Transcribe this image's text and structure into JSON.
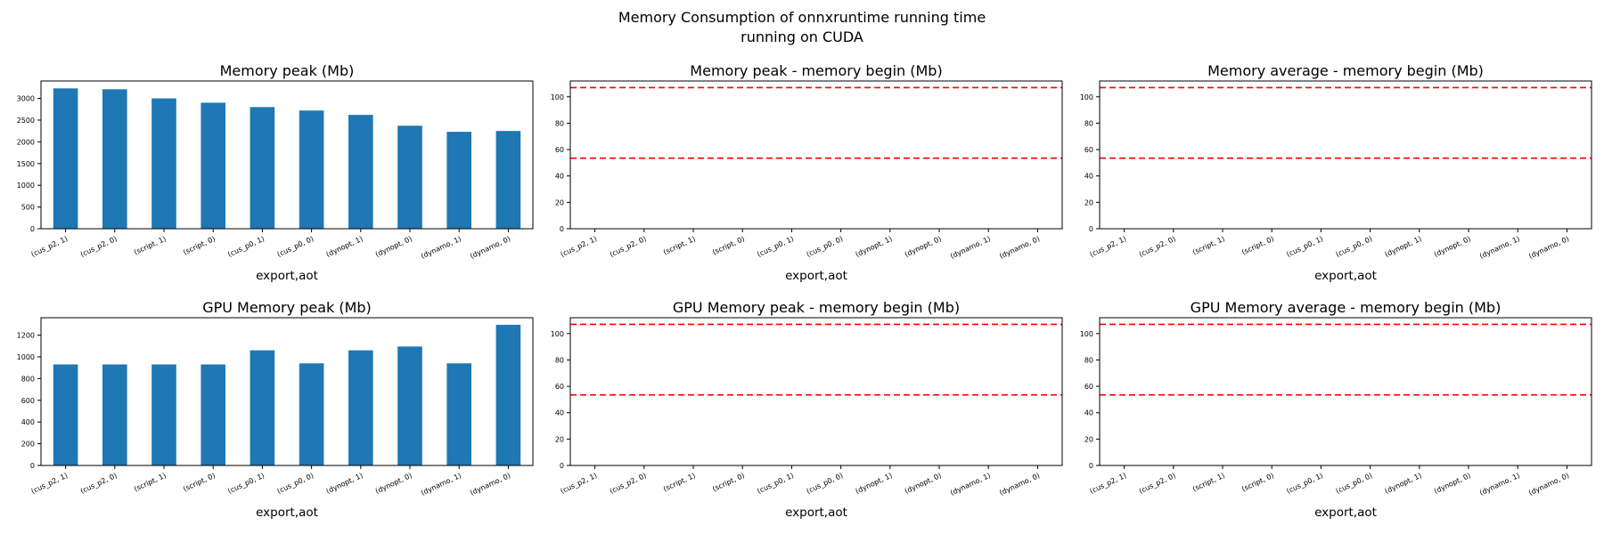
{
  "figure": {
    "title_line1": "Memory Consumption of onnxruntime running time",
    "title_line2": "running on CUDA"
  },
  "chart_data": [
    {
      "type": "bar",
      "title": "Memory peak (Mb)",
      "xlabel": "export,aot",
      "ylabel": "",
      "categories": [
        "(cus_p2, 1)",
        "(cus_p2, 0)",
        "(script, 1)",
        "(script, 0)",
        "(cus_p0, 1)",
        "(cus_p0, 0)",
        "(dynopt, 1)",
        "(dynopt, 0)",
        "(dynamo, 1)",
        "(dynamo, 0)"
      ],
      "values": [
        3230,
        3210,
        3000,
        2900,
        2800,
        2720,
        2620,
        2370,
        2230,
        2250
      ],
      "ylim": [
        0,
        3400
      ],
      "yticks": [
        0,
        500,
        1000,
        1500,
        2000,
        2500,
        3000
      ],
      "hlines": [],
      "legend": "none",
      "grid": false
    },
    {
      "type": "bar",
      "title": "Memory peak - memory begin (Mb)",
      "xlabel": "export,aot",
      "ylabel": "",
      "categories": [
        "(cus_p2, 1)",
        "(cus_p2, 0)",
        "(script, 1)",
        "(script, 0)",
        "(cus_p0, 1)",
        "(cus_p0, 0)",
        "(dynopt, 1)",
        "(dynopt, 0)",
        "(dynamo, 1)",
        "(dynamo, 0)"
      ],
      "values": [
        0,
        0,
        0,
        0,
        0,
        0,
        0,
        0,
        0,
        0
      ],
      "ylim": [
        0,
        112
      ],
      "yticks": [
        0,
        20,
        40,
        60,
        80,
        100
      ],
      "hlines": [
        53.5,
        107
      ],
      "legend": "none",
      "grid": false
    },
    {
      "type": "bar",
      "title": "Memory average - memory begin (Mb)",
      "xlabel": "export,aot",
      "ylabel": "",
      "categories": [
        "(cus_p2, 1)",
        "(cus_p2, 0)",
        "(script, 1)",
        "(script, 0)",
        "(cus_p0, 1)",
        "(cus_p0, 0)",
        "(dynopt, 1)",
        "(dynopt, 0)",
        "(dynamo, 1)",
        "(dynamo, 0)"
      ],
      "values": [
        0,
        0,
        0,
        0,
        0,
        0,
        0,
        0,
        0,
        0
      ],
      "ylim": [
        0,
        112
      ],
      "yticks": [
        0,
        20,
        40,
        60,
        80,
        100
      ],
      "hlines": [
        53.5,
        107
      ],
      "legend": "none",
      "grid": false
    },
    {
      "type": "bar",
      "title": "GPU Memory peak (Mb)",
      "xlabel": "export,aot",
      "ylabel": "",
      "categories": [
        "(cus_p2, 1)",
        "(cus_p2, 0)",
        "(script, 1)",
        "(script, 0)",
        "(cus_p0, 1)",
        "(cus_p0, 0)",
        "(dynopt, 1)",
        "(dynopt, 0)",
        "(dynamo, 1)",
        "(dynamo, 0)"
      ],
      "values": [
        930,
        930,
        930,
        930,
        1060,
        940,
        1060,
        1095,
        940,
        1295
      ],
      "ylim": [
        0,
        1360
      ],
      "yticks": [
        0,
        200,
        400,
        600,
        800,
        1000,
        1200
      ],
      "hlines": [],
      "legend": "none",
      "grid": false
    },
    {
      "type": "bar",
      "title": "GPU Memory peak - memory begin (Mb)",
      "xlabel": "export,aot",
      "ylabel": "",
      "categories": [
        "(cus_p2, 1)",
        "(cus_p2, 0)",
        "(script, 1)",
        "(script, 0)",
        "(cus_p0, 1)",
        "(cus_p0, 0)",
        "(dynopt, 1)",
        "(dynopt, 0)",
        "(dynamo, 1)",
        "(dynamo, 0)"
      ],
      "values": [
        0,
        0,
        0,
        0,
        0,
        0,
        0,
        0,
        0,
        0
      ],
      "ylim": [
        0,
        112
      ],
      "yticks": [
        0,
        20,
        40,
        60,
        80,
        100
      ],
      "hlines": [
        53.5,
        107
      ],
      "legend": "none",
      "grid": false
    },
    {
      "type": "bar",
      "title": "GPU Memory average - memory begin (Mb)",
      "xlabel": "export,aot",
      "ylabel": "",
      "categories": [
        "(cus_p2, 1)",
        "(cus_p2, 0)",
        "(script, 1)",
        "(script, 0)",
        "(cus_p0, 1)",
        "(cus_p0, 0)",
        "(dynopt, 1)",
        "(dynopt, 0)",
        "(dynamo, 1)",
        "(dynamo, 0)"
      ],
      "values": [
        0,
        0,
        0,
        0,
        0,
        0,
        0,
        0,
        0,
        0
      ],
      "ylim": [
        0,
        112
      ],
      "yticks": [
        0,
        20,
        40,
        60,
        80,
        100
      ],
      "hlines": [
        53.5,
        107
      ],
      "legend": "none",
      "grid": false
    }
  ],
  "colors": {
    "bar": "#1f77b4",
    "reference_line": "#ff0000"
  }
}
